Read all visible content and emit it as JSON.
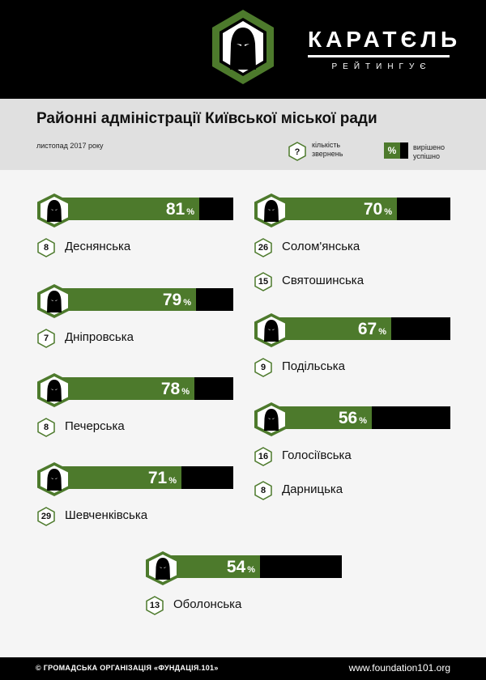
{
  "header": {
    "brand_name": "КАРАТЄЛЬ",
    "brand_sub": "РЕЙТИНГУЄ"
  },
  "title": "Районні адміністрації Київської міської ради",
  "date": "листопад 2017 року",
  "legend": {
    "count_symbol": "?",
    "count_label": "кількість звернень",
    "percent_symbol": "%",
    "percent_label": "вирішено успішно"
  },
  "percent_sign": "%",
  "colors": {
    "green": "#4d7a2c",
    "black": "#000000",
    "background": "#f5f5f5",
    "band": "#e0e0e0"
  },
  "icon": "hooded-figure-hexagon-icon",
  "groups": [
    {
      "percent": 81,
      "districts": [
        {
          "name": "Деснянська",
          "count": "8"
        }
      ]
    },
    {
      "percent": 79,
      "districts": [
        {
          "name": "Дніпровська",
          "count": "7"
        }
      ]
    },
    {
      "percent": 78,
      "districts": [
        {
          "name": "Печерська",
          "count": "8"
        }
      ]
    },
    {
      "percent": 71,
      "districts": [
        {
          "name": "Шевченківська",
          "count": "29"
        }
      ]
    },
    {
      "percent": 70,
      "districts": [
        {
          "name": "Солом'янська",
          "count": "26"
        },
        {
          "name": "Святошинська",
          "count": "15"
        }
      ]
    },
    {
      "percent": 67,
      "districts": [
        {
          "name": "Подільська",
          "count": "9"
        }
      ]
    },
    {
      "percent": 56,
      "districts": [
        {
          "name": "Голосіївська",
          "count": "16"
        },
        {
          "name": "Дарницька",
          "count": "8"
        }
      ]
    },
    {
      "percent": 54,
      "districts": [
        {
          "name": "Оболонська",
          "count": "13"
        }
      ]
    }
  ],
  "footer": {
    "left": "© ГРОМАДСЬКА ОРГАНІЗАЦІЯ «ФУНДАЦІЯ.101»",
    "right": "www.foundation101.org"
  }
}
